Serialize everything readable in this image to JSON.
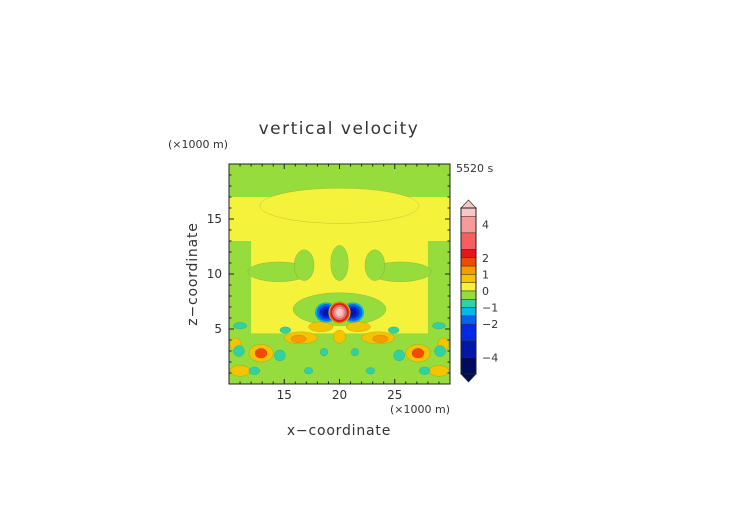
{
  "chart_data": {
    "type": "heatmap",
    "title": "vertical velocity",
    "time_label": "5520 s",
    "xlabel": "x−coordinate",
    "ylabel": "z−coordinate",
    "x_units": "(×1000 m)",
    "y_units": "(×1000 m)",
    "xlim": [
      10,
      30
    ],
    "ylim": [
      0,
      20
    ],
    "x_ticks": [
      15,
      20,
      25
    ],
    "y_ticks": [
      5,
      10,
      15
    ],
    "x_tick_labels": [
      "15",
      "20",
      "25"
    ],
    "y_tick_labels": [
      "5",
      "10",
      "15"
    ],
    "colorbar": {
      "tick_values": [
        4,
        2,
        1,
        0,
        -1,
        -2,
        -4
      ],
      "tick_labels": [
        "4",
        "2",
        "1",
        "0",
        "−1",
        "−2",
        "−4"
      ],
      "levels": [
        {
          "from": 4.5,
          "to": 5,
          "color": "#f8c8c8"
        },
        {
          "from": 3.5,
          "to": 4.5,
          "color": "#f79a9a"
        },
        {
          "from": 2.5,
          "to": 3.5,
          "color": "#f46060"
        },
        {
          "from": 2,
          "to": 2.5,
          "color": "#e51616"
        },
        {
          "from": 1.5,
          "to": 2,
          "color": "#f24a00"
        },
        {
          "from": 1,
          "to": 1.5,
          "color": "#f79a00"
        },
        {
          "from": 0.5,
          "to": 1,
          "color": "#f5c400"
        },
        {
          "from": 0,
          "to": 0.5,
          "color": "#f5f23c"
        },
        {
          "from": -0.5,
          "to": 0,
          "color": "#96dc3c"
        },
        {
          "from": -1,
          "to": -0.5,
          "color": "#2ed2a4"
        },
        {
          "from": -1.5,
          "to": -1,
          "color": "#00b7f0"
        },
        {
          "from": -2,
          "to": -1.5,
          "color": "#0064f0"
        },
        {
          "from": -3,
          "to": -2,
          "color": "#002ae6"
        },
        {
          "from": -4,
          "to": -3,
          "color": "#0018a8"
        },
        {
          "from": -5,
          "to": -4,
          "color": "#000a5a"
        }
      ]
    },
    "field": {
      "background_value": 0.25,
      "regions": [
        {
          "kind": "rect",
          "x": [
            10,
            30
          ],
          "z": [
            17,
            20
          ],
          "value": -0.25
        },
        {
          "kind": "ellipse",
          "cx": 20,
          "cz": 16.2,
          "rx": 7.2,
          "rz": 1.6,
          "value": 0.25
        },
        {
          "kind": "rect",
          "x": [
            10,
            12
          ],
          "z": [
            0,
            13
          ],
          "value": -0.25
        },
        {
          "kind": "rect",
          "x": [
            28,
            30
          ],
          "z": [
            0,
            13
          ],
          "value": -0.25
        },
        {
          "kind": "ellipse",
          "cx": 14.5,
          "cz": 10.2,
          "rx": 2.8,
          "rz": 0.9,
          "value": -0.25
        },
        {
          "kind": "ellipse",
          "cx": 25.5,
          "cz": 10.2,
          "rx": 2.8,
          "rz": 0.9,
          "value": -0.25
        },
        {
          "kind": "ellipse",
          "cx": 16.8,
          "cz": 10.8,
          "rx": 0.9,
          "rz": 1.4,
          "value": -0.25
        },
        {
          "kind": "ellipse",
          "cx": 23.2,
          "cz": 10.8,
          "rx": 0.9,
          "rz": 1.4,
          "value": -0.25
        },
        {
          "kind": "ellipse",
          "cx": 20,
          "cz": 11.0,
          "rx": 0.8,
          "rz": 1.6,
          "value": -0.25
        },
        {
          "kind": "ellipse",
          "cx": 20,
          "cz": 6.8,
          "rx": 4.2,
          "rz": 1.5,
          "value": -0.25
        },
        {
          "kind": "rect",
          "x": [
            10,
            30
          ],
          "z": [
            0,
            4.6
          ],
          "value": -0.25
        },
        {
          "kind": "ellipse",
          "cx": 12.9,
          "cz": 2.8,
          "rx": 1.1,
          "rz": 0.8,
          "value": 0.75
        },
        {
          "kind": "ellipse",
          "cx": 12.9,
          "cz": 2.8,
          "rx": 0.55,
          "rz": 0.45,
          "value": 1.75
        },
        {
          "kind": "ellipse",
          "cx": 27.1,
          "cz": 2.8,
          "rx": 1.1,
          "rz": 0.8,
          "value": 0.75
        },
        {
          "kind": "ellipse",
          "cx": 27.1,
          "cz": 2.8,
          "rx": 0.55,
          "rz": 0.45,
          "value": 1.75
        },
        {
          "kind": "ellipse",
          "cx": 10.6,
          "cz": 3.6,
          "rx": 0.5,
          "rz": 0.6,
          "value": 0.75
        },
        {
          "kind": "ellipse",
          "cx": 29.4,
          "cz": 3.6,
          "rx": 0.5,
          "rz": 0.6,
          "value": 0.75
        },
        {
          "kind": "ellipse",
          "cx": 11.0,
          "cz": 1.2,
          "rx": 0.9,
          "rz": 0.5,
          "value": 0.75
        },
        {
          "kind": "ellipse",
          "cx": 29.0,
          "cz": 1.2,
          "rx": 0.9,
          "rz": 0.5,
          "value": 0.75
        },
        {
          "kind": "ellipse",
          "cx": 16.5,
          "cz": 4.2,
          "rx": 1.5,
          "rz": 0.55,
          "value": 0.75
        },
        {
          "kind": "ellipse",
          "cx": 16.3,
          "cz": 4.1,
          "rx": 0.7,
          "rz": 0.35,
          "value": 1.25
        },
        {
          "kind": "ellipse",
          "cx": 23.5,
          "cz": 4.2,
          "rx": 1.5,
          "rz": 0.55,
          "value": 0.75
        },
        {
          "kind": "ellipse",
          "cx": 23.7,
          "cz": 4.1,
          "rx": 0.7,
          "rz": 0.35,
          "value": 1.25
        },
        {
          "kind": "ellipse",
          "cx": 18.3,
          "cz": 5.2,
          "rx": 1.1,
          "rz": 0.45,
          "value": 0.75
        },
        {
          "kind": "ellipse",
          "cx": 21.7,
          "cz": 5.2,
          "rx": 1.1,
          "rz": 0.45,
          "value": 0.75
        },
        {
          "kind": "ellipse",
          "cx": 20,
          "cz": 4.3,
          "rx": 0.55,
          "rz": 0.6,
          "value": 0.75
        },
        {
          "kind": "ellipse",
          "cx": 11.0,
          "cz": 5.3,
          "rx": 0.6,
          "rz": 0.3,
          "value": -0.75
        },
        {
          "kind": "ellipse",
          "cx": 29.0,
          "cz": 5.3,
          "rx": 0.6,
          "rz": 0.3,
          "value": -0.75
        },
        {
          "kind": "ellipse",
          "cx": 10.9,
          "cz": 3.0,
          "rx": 0.5,
          "rz": 0.5,
          "value": -0.75
        },
        {
          "kind": "ellipse",
          "cx": 29.1,
          "cz": 3.0,
          "rx": 0.5,
          "rz": 0.5,
          "value": -0.75
        },
        {
          "kind": "ellipse",
          "cx": 14.6,
          "cz": 2.6,
          "rx": 0.5,
          "rz": 0.5,
          "value": -0.75
        },
        {
          "kind": "ellipse",
          "cx": 25.4,
          "cz": 2.6,
          "rx": 0.5,
          "rz": 0.5,
          "value": -0.75
        },
        {
          "kind": "ellipse",
          "cx": 12.3,
          "cz": 1.2,
          "rx": 0.5,
          "rz": 0.35,
          "value": -0.75
        },
        {
          "kind": "ellipse",
          "cx": 27.7,
          "cz": 1.2,
          "rx": 0.5,
          "rz": 0.35,
          "value": -0.75
        },
        {
          "kind": "ellipse",
          "cx": 15.1,
          "cz": 4.9,
          "rx": 0.5,
          "rz": 0.3,
          "value": -0.75
        },
        {
          "kind": "ellipse",
          "cx": 24.9,
          "cz": 4.9,
          "rx": 0.5,
          "rz": 0.3,
          "value": -0.75
        },
        {
          "kind": "ellipse",
          "cx": 18.6,
          "cz": 2.9,
          "rx": 0.35,
          "rz": 0.35,
          "value": -0.75
        },
        {
          "kind": "ellipse",
          "cx": 21.4,
          "cz": 2.9,
          "rx": 0.35,
          "rz": 0.35,
          "value": -0.75
        },
        {
          "kind": "ellipse",
          "cx": 17.2,
          "cz": 1.2,
          "rx": 0.4,
          "rz": 0.3,
          "value": -0.75
        },
        {
          "kind": "ellipse",
          "cx": 22.8,
          "cz": 1.2,
          "rx": 0.4,
          "rz": 0.3,
          "value": -0.75
        },
        {
          "kind": "ellipse",
          "cx": 18.8,
          "cz": 6.5,
          "rx": 1.0,
          "rz": 0.9,
          "value": -1.25
        },
        {
          "kind": "ellipse",
          "cx": 18.8,
          "cz": 6.5,
          "rx": 0.85,
          "rz": 0.75,
          "value": -1.75
        },
        {
          "kind": "ellipse",
          "cx": 18.8,
          "cz": 6.5,
          "rx": 0.6,
          "rz": 0.55,
          "value": -2.5
        },
        {
          "kind": "ellipse",
          "cx": 18.8,
          "cz": 6.5,
          "rx": 0.35,
          "rz": 0.35,
          "value": -3.5
        },
        {
          "kind": "ellipse",
          "cx": 21.2,
          "cz": 6.5,
          "rx": 1.0,
          "rz": 0.9,
          "value": -1.25
        },
        {
          "kind": "ellipse",
          "cx": 21.2,
          "cz": 6.5,
          "rx": 0.85,
          "rz": 0.75,
          "value": -1.75
        },
        {
          "kind": "ellipse",
          "cx": 21.2,
          "cz": 6.5,
          "rx": 0.6,
          "rz": 0.55,
          "value": -2.5
        },
        {
          "kind": "ellipse",
          "cx": 21.2,
          "cz": 6.5,
          "rx": 0.35,
          "rz": 0.35,
          "value": -3.5
        },
        {
          "kind": "ellipse",
          "cx": 20,
          "cz": 6.5,
          "rx": 1.0,
          "rz": 1.0,
          "value": 0.75
        },
        {
          "kind": "ellipse",
          "cx": 20,
          "cz": 6.5,
          "rx": 0.9,
          "rz": 0.92,
          "value": 1.75
        },
        {
          "kind": "ellipse",
          "cx": 20,
          "cz": 6.5,
          "rx": 0.8,
          "rz": 0.82,
          "value": 2.25
        },
        {
          "kind": "ellipse",
          "cx": 20,
          "cz": 6.5,
          "rx": 0.68,
          "rz": 0.7,
          "value": 3.0
        },
        {
          "kind": "ellipse",
          "cx": 20,
          "cz": 6.5,
          "rx": 0.5,
          "rz": 0.55,
          "value": 4.0
        },
        {
          "kind": "ellipse",
          "cx": 20,
          "cz": 6.5,
          "rx": 0.32,
          "rz": 0.38,
          "value": 4.75
        }
      ]
    }
  }
}
